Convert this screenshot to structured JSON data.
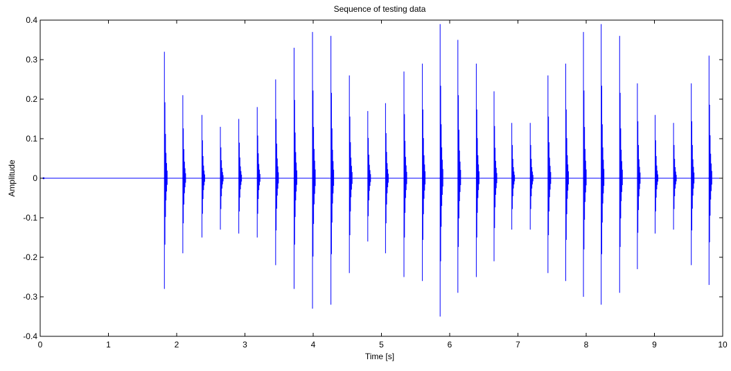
{
  "chart_data": {
    "type": "line",
    "title": "Sequence of testing data",
    "xlabel": "Time [s]",
    "ylabel": "Amplitude",
    "xlim": [
      0,
      10
    ],
    "ylim": [
      -0.4,
      0.4
    ],
    "xticks": [
      "0",
      "1",
      "2",
      "3",
      "4",
      "5",
      "6",
      "7",
      "8",
      "9",
      "10"
    ],
    "yticks": [
      "0.4",
      "0.3",
      "0.2",
      "0.1",
      "0",
      "-0.1",
      "-0.2",
      "-0.3",
      "-0.4"
    ],
    "grid": false,
    "colors": {
      "series": "#0000ff",
      "axes": "#000000",
      "background": "#ffffff"
    },
    "series": [
      {
        "name": "",
        "spikes": [
          {
            "t": 1.82,
            "max": 0.32,
            "min": -0.28
          },
          {
            "t": 2.09,
            "max": 0.21,
            "min": -0.19
          },
          {
            "t": 2.37,
            "max": 0.16,
            "min": -0.15
          },
          {
            "t": 2.64,
            "max": 0.13,
            "min": -0.13
          },
          {
            "t": 2.91,
            "max": 0.15,
            "min": -0.14
          },
          {
            "t": 3.18,
            "max": 0.18,
            "min": -0.15
          },
          {
            "t": 3.45,
            "max": 0.25,
            "min": -0.22
          },
          {
            "t": 3.72,
            "max": 0.33,
            "min": -0.28
          },
          {
            "t": 3.99,
            "max": 0.37,
            "min": -0.33
          },
          {
            "t": 4.26,
            "max": 0.36,
            "min": -0.32
          },
          {
            "t": 4.53,
            "max": 0.26,
            "min": -0.24
          },
          {
            "t": 4.8,
            "max": 0.17,
            "min": -0.16
          },
          {
            "t": 5.06,
            "max": 0.19,
            "min": -0.19
          },
          {
            "t": 5.33,
            "max": 0.27,
            "min": -0.25
          },
          {
            "t": 5.6,
            "max": 0.29,
            "min": -0.26
          },
          {
            "t": 5.86,
            "max": 0.39,
            "min": -0.35
          },
          {
            "t": 6.12,
            "max": 0.35,
            "min": -0.29
          },
          {
            "t": 6.39,
            "max": 0.29,
            "min": -0.25
          },
          {
            "t": 6.65,
            "max": 0.22,
            "min": -0.21
          },
          {
            "t": 6.91,
            "max": 0.14,
            "min": -0.13
          },
          {
            "t": 7.18,
            "max": 0.14,
            "min": -0.13
          },
          {
            "t": 7.44,
            "max": 0.26,
            "min": -0.24
          },
          {
            "t": 7.7,
            "max": 0.29,
            "min": -0.26
          },
          {
            "t": 7.96,
            "max": 0.37,
            "min": -0.3
          },
          {
            "t": 8.22,
            "max": 0.39,
            "min": -0.32
          },
          {
            "t": 8.49,
            "max": 0.36,
            "min": -0.29
          },
          {
            "t": 8.75,
            "max": 0.24,
            "min": -0.23
          },
          {
            "t": 9.01,
            "max": 0.16,
            "min": -0.14
          },
          {
            "t": 9.28,
            "max": 0.14,
            "min": -0.13
          },
          {
            "t": 9.54,
            "max": 0.24,
            "min": -0.22
          },
          {
            "t": 9.8,
            "max": 0.31,
            "min": -0.27
          }
        ]
      }
    ]
  }
}
